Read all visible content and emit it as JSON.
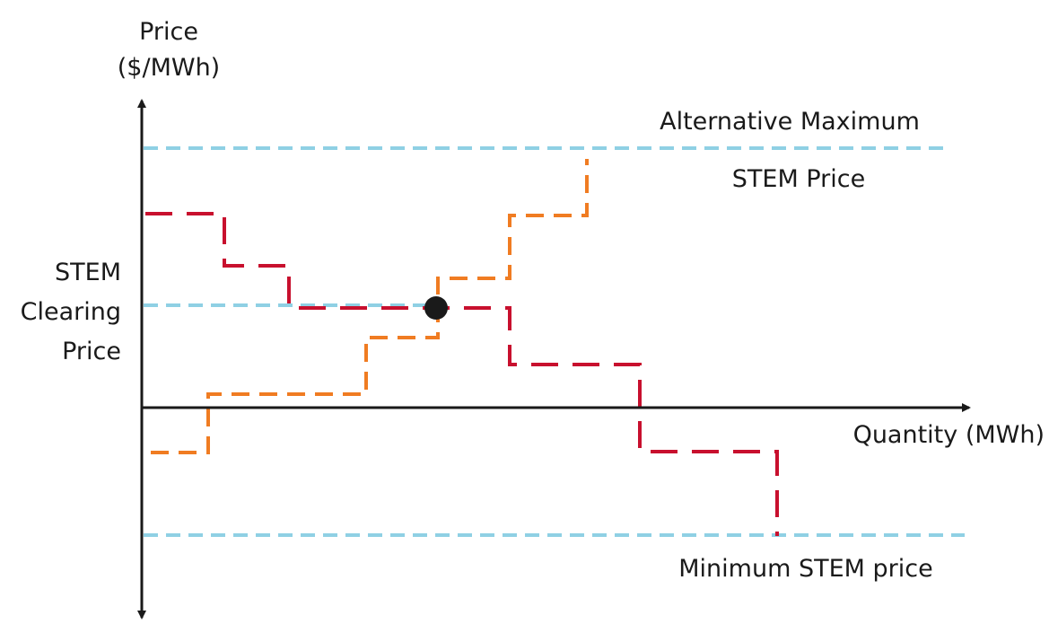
{
  "labels": {
    "y_axis_line1": "Price",
    "y_axis_line2": "($/MWh)",
    "x_axis": "Quantity (MWh)",
    "alt_max_line1": "Alternative Maximum",
    "alt_max_line2": "STEM Price",
    "clearing_line1": "STEM",
    "clearing_line2": "Clearing",
    "clearing_line3": "Price",
    "min_price": "Minimum STEM price"
  },
  "colors": {
    "axis": "#1a1a1a",
    "reference_lines": "#8fd0e4",
    "demand_curve": "#c8102e",
    "supply_curve": "#f07c22",
    "clearing_point": "#1a1a1a"
  },
  "curves": {
    "demand": "stepped, dashed red, decreasing",
    "supply": "stepped, dashed orange, increasing"
  },
  "marker": "clearing-point (intersection of demand and supply)"
}
